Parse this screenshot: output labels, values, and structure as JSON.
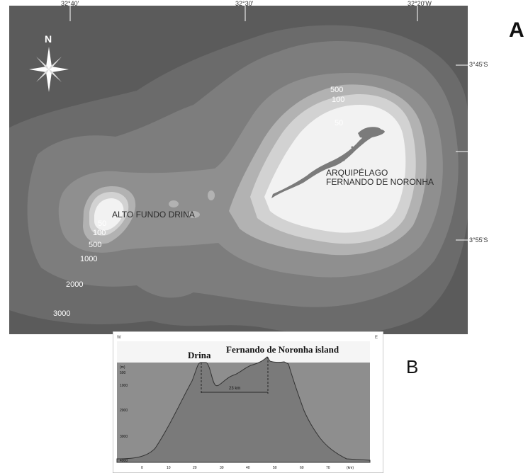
{
  "panel_labels": {
    "a": "A",
    "b": "B"
  },
  "map": {
    "longitude_labels": [
      "32°40'",
      "32°30'",
      "32°20'W"
    ],
    "latitude_labels": [
      "3°45'S",
      "3°55'S"
    ],
    "north_label": "N",
    "place_labels": {
      "archipelago_line1": "ARQUIPÉLAGO",
      "archipelago_line2": "FERNANDO DE NORONHA",
      "alto_fundo": "ALTO FUNDO DRINA"
    },
    "contour_labels": {
      "east_500": "500",
      "east_100": "100",
      "east_50": "50",
      "west_50": "50",
      "west_100": "100",
      "west_500": "500",
      "c1000": "1000",
      "c2000": "2000",
      "c3000": "3000"
    },
    "colors": {
      "deep": "#5b5b5b",
      "c3000": "#6b6b6b",
      "c2000": "#7d7d7d",
      "c1000": "#8f8f8f",
      "c500": "#b2b2b2",
      "c100": "#d2d2d2",
      "c50": "#f2f2f2",
      "land": "#7b7b7b"
    }
  },
  "profile": {
    "west_label": "W",
    "east_label": "E",
    "title_drina": "Drina",
    "title_noronha": "Fernando de Noronha island",
    "distance_label": "23 km",
    "depth_ticks": [
      "(m)",
      "500",
      "1000",
      "2000",
      "3000",
      "4000"
    ],
    "km_ticks": [
      "0",
      "10",
      "20",
      "30",
      "40",
      "50",
      "60",
      "70",
      "(km)"
    ],
    "colors": {
      "water": "#8e8e8e",
      "sky": "#f5f5f5"
    }
  }
}
